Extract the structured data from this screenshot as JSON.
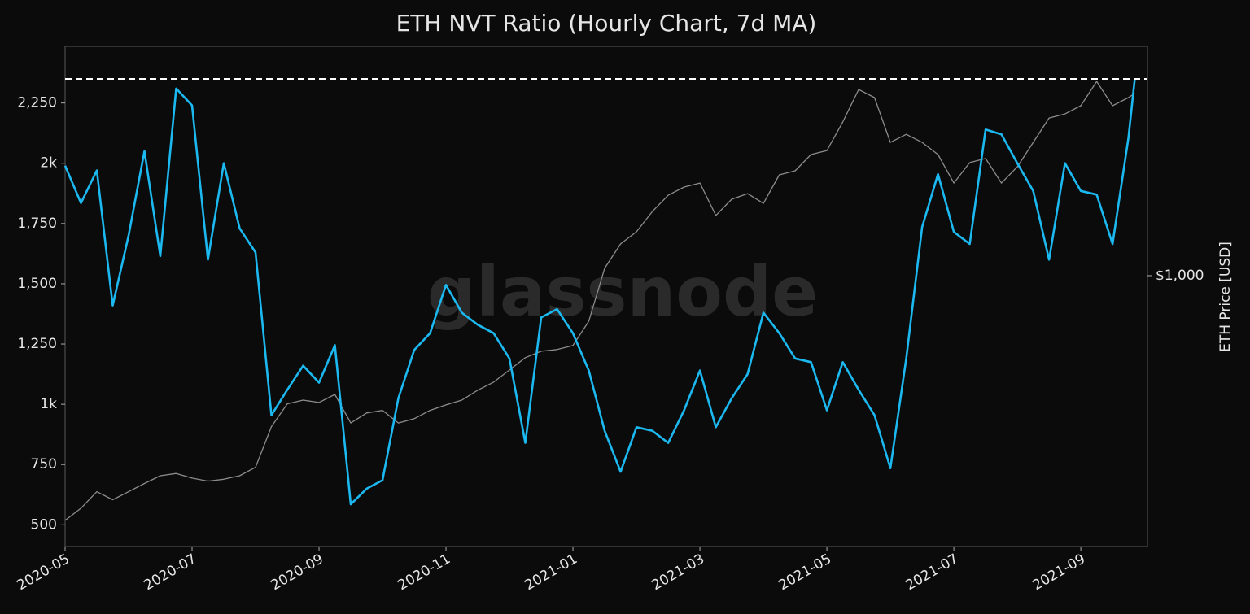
{
  "chart_data": {
    "type": "line",
    "title": "ETH NVT Ratio (Hourly Chart, 7d MA)",
    "watermark": "glassnode",
    "y2label": "ETH Price [USD]",
    "x": [
      0,
      0.25,
      0.5,
      0.75,
      1,
      1.25,
      1.5,
      1.75,
      2,
      2.25,
      2.5,
      2.75,
      3,
      3.25,
      3.5,
      3.75,
      4,
      4.25,
      4.5,
      4.75,
      5,
      5.25,
      5.5,
      5.75,
      6,
      6.25,
      6.5,
      6.75,
      7,
      7.25,
      7.5,
      7.75,
      8,
      8.25,
      8.5,
      8.75,
      9,
      9.25,
      9.5,
      9.75,
      10,
      10.25,
      10.5,
      10.75,
      11,
      11.25,
      11.5,
      11.75,
      12,
      12.25,
      12.5,
      12.75,
      13,
      13.25,
      13.5,
      13.75,
      14,
      14.25,
      14.5,
      14.75,
      15,
      15.25,
      15.5,
      15.75,
      16,
      16.25,
      16.5,
      16.75,
      16.85
    ],
    "xlim": [
      0,
      17.05
    ],
    "xticks": [
      {
        "value": 0,
        "label": "2020-05"
      },
      {
        "value": 2,
        "label": "2020-07"
      },
      {
        "value": 4,
        "label": "2020-09"
      },
      {
        "value": 6,
        "label": "2020-11"
      },
      {
        "value": 8,
        "label": "2021-01"
      },
      {
        "value": 10,
        "label": "2021-03"
      },
      {
        "value": 12,
        "label": "2021-05"
      },
      {
        "value": 14,
        "label": "2021-07"
      },
      {
        "value": 16,
        "label": "2021-09"
      }
    ],
    "ylim": [
      410,
      2485
    ],
    "yticks": [
      500,
      750,
      {
        "value": 1000,
        "label": "1k"
      },
      {
        "value": 1250,
        "label": "1,250"
      },
      {
        "value": 1500,
        "label": "1,500"
      },
      {
        "value": 1750,
        "label": "1,750"
      },
      {
        "value": 2000,
        "label": "2k"
      },
      {
        "value": 2250,
        "label": "2,250"
      }
    ],
    "y2lim": [
      149,
      5012
    ],
    "y2scale": "log",
    "y2ticks": [
      {
        "value": 1000,
        "label": "$1,000"
      }
    ],
    "hline": 2350,
    "series": [
      {
        "color": "#8c8c8c",
        "axis": "y2",
        "values": [
          179,
          195,
          219,
          207,
          219,
          232,
          245,
          249,
          241,
          236,
          239,
          245,
          260,
          346,
          406,
          417,
          410,
          434,
          355,
          381,
          388,
          355,
          366,
          388,
          403,
          417,
          447,
          473,
          515,
          562,
          588,
          595,
          612,
          726,
          1053,
          1250,
          1361,
          1570,
          1760,
          1864,
          1917,
          1527,
          1711,
          1780,
          1662,
          2031,
          2090,
          2343,
          2410,
          2945,
          3700,
          3497,
          2552,
          2700,
          2552,
          2343,
          1917,
          2214,
          2278,
          1917,
          2150,
          2552,
          3029,
          3117,
          3302,
          3917,
          3302,
          3497,
          3600
        ]
      },
      {
        "color": "#1cb8f0",
        "values": [
          1990,
          1835,
          1970,
          1410,
          1700,
          2050,
          1615,
          2310,
          2240,
          1600,
          2000,
          1730,
          1630,
          955,
          1060,
          1160,
          1090,
          1245,
          585,
          650,
          685,
          1025,
          1225,
          1295,
          1495,
          1380,
          1330,
          1295,
          1190,
          840,
          1360,
          1395,
          1295,
          1140,
          890,
          720,
          905,
          890,
          840,
          975,
          1140,
          905,
          1025,
          1125,
          1380,
          1295,
          1190,
          1175,
          975,
          1175,
          1060,
          955,
          735,
          1190,
          1735,
          1955,
          1715,
          1665,
          2140,
          2120,
          2000,
          1885,
          1600,
          2000,
          1885,
          1870,
          1665,
          2105,
          2350
        ]
      }
    ]
  }
}
